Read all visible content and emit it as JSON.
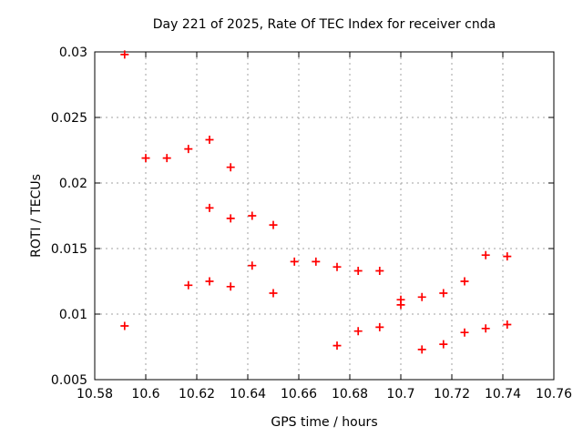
{
  "chart_data": {
    "type": "scatter",
    "title": "Day 221 of 2025, Rate Of TEC Index for receiver cnda",
    "xlabel": "GPS time / hours",
    "ylabel": "ROTI / TECUs",
    "xlim": [
      10.58,
      10.76
    ],
    "ylim": [
      0.005,
      0.03
    ],
    "xticks": {
      "values": [
        10.58,
        10.6,
        10.62,
        10.64,
        10.66,
        10.68,
        10.7,
        10.72,
        10.74,
        10.76
      ],
      "labels": [
        "10.58",
        "10.6",
        "10.62",
        "10.64",
        "10.66",
        "10.68",
        "10.7",
        "10.72",
        "10.74",
        "10.76"
      ]
    },
    "yticks": {
      "values": [
        0.005,
        0.01,
        0.015,
        0.02,
        0.025,
        0.03
      ],
      "labels": [
        "0.005",
        "0.01",
        "0.015",
        "0.02",
        "0.025",
        "0.03"
      ]
    },
    "grid": true,
    "legend": "none",
    "marker": {
      "shape": "plus",
      "color": "#ff0000",
      "size": 9
    },
    "axis_color": "#000000",
    "grid_color": "#a0a0a0",
    "background": "#ffffff",
    "series": [
      {
        "name": "ROTI",
        "points": [
          [
            10.5917,
            0.0298
          ],
          [
            10.5917,
            0.0091
          ],
          [
            10.6,
            0.0219
          ],
          [
            10.6083,
            0.0219
          ],
          [
            10.6167,
            0.0226
          ],
          [
            10.6167,
            0.0122
          ],
          [
            10.625,
            0.0233
          ],
          [
            10.625,
            0.0181
          ],
          [
            10.625,
            0.0125
          ],
          [
            10.6333,
            0.0212
          ],
          [
            10.6333,
            0.0173
          ],
          [
            10.6333,
            0.0121
          ],
          [
            10.6417,
            0.0175
          ],
          [
            10.6417,
            0.0137
          ],
          [
            10.65,
            0.0168
          ],
          [
            10.65,
            0.0116
          ],
          [
            10.6583,
            0.014
          ],
          [
            10.6667,
            0.014
          ],
          [
            10.675,
            0.0136
          ],
          [
            10.675,
            0.0076
          ],
          [
            10.6833,
            0.0133
          ],
          [
            10.6833,
            0.0087
          ],
          [
            10.6917,
            0.0133
          ],
          [
            10.6917,
            0.009
          ],
          [
            10.7,
            0.0111
          ],
          [
            10.7,
            0.0107
          ],
          [
            10.7083,
            0.0113
          ],
          [
            10.7083,
            0.0073
          ],
          [
            10.7167,
            0.0116
          ],
          [
            10.7167,
            0.0077
          ],
          [
            10.725,
            0.0125
          ],
          [
            10.725,
            0.0086
          ],
          [
            10.7333,
            0.0145
          ],
          [
            10.7333,
            0.0089
          ],
          [
            10.7417,
            0.0144
          ],
          [
            10.7417,
            0.0092
          ]
        ]
      }
    ]
  }
}
